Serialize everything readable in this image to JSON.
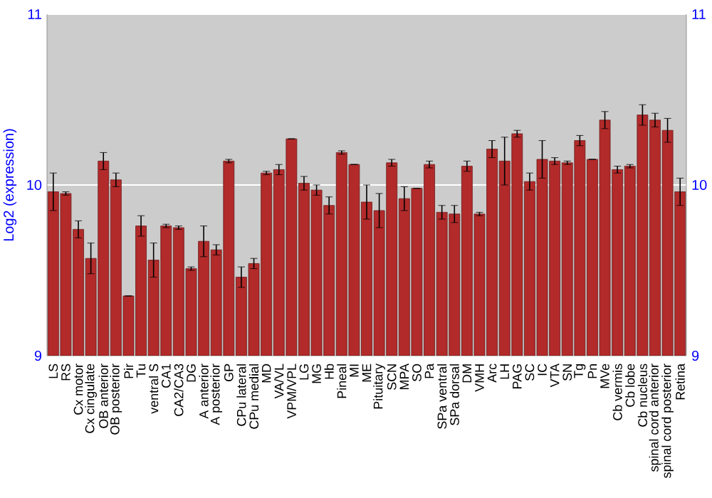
{
  "chart_data": {
    "type": "bar",
    "ylabel": "Log2 (expression)",
    "categories": [
      "LS",
      "RS",
      "Cx motor",
      "Cx cingulate",
      "OB anterior",
      "OB posterior",
      "Pir",
      "Tu",
      "ventral S",
      "CA1",
      "CA2/CA3",
      "DG",
      "A anterior",
      "A posterior",
      "GP",
      "CPu lateral",
      "CPu medial",
      "MD",
      "VA/VL",
      "VPM/VPL",
      "LG",
      "MG",
      "Hb",
      "Pineal",
      "MI",
      "ME",
      "Pituitary",
      "SCN",
      "MPA",
      "SO",
      "Pa",
      "SPa ventral",
      "SPa dorsal",
      "DM",
      "VMH",
      "Arc",
      "LH",
      "PAG",
      "SC",
      "IC",
      "VTA",
      "SN",
      "Tg",
      "Pn",
      "MVe",
      "Cb vermis",
      "Cb lobe",
      "Cb nucleus",
      "spinal cord anterior",
      "spinal cord posterior",
      "Retina"
    ],
    "values": [
      9.96,
      9.95,
      9.74,
      9.57,
      10.14,
      10.03,
      9.35,
      9.76,
      9.56,
      9.76,
      9.75,
      9.51,
      9.67,
      9.62,
      10.14,
      9.46,
      9.54,
      10.07,
      10.09,
      10.27,
      10.01,
      9.97,
      9.88,
      10.19,
      10.12,
      9.9,
      9.85,
      10.13,
      9.92,
      9.98,
      10.12,
      9.84,
      9.83,
      10.11,
      9.83,
      10.21,
      10.14,
      10.3,
      10.02,
      10.15,
      10.14,
      10.13,
      10.26,
      10.15,
      10.38,
      10.09,
      10.11,
      10.41,
      10.38,
      10.32,
      9.96
    ],
    "errors": [
      0.11,
      0.01,
      0.05,
      0.09,
      0.05,
      0.04,
      null,
      0.06,
      0.1,
      0.01,
      0.01,
      0.01,
      0.09,
      0.03,
      0.01,
      0.06,
      0.03,
      0.01,
      0.03,
      null,
      0.04,
      0.03,
      0.05,
      0.01,
      null,
      0.1,
      0.1,
      0.02,
      0.07,
      null,
      0.02,
      0.04,
      0.05,
      0.03,
      0.01,
      0.05,
      0.14,
      0.02,
      0.05,
      0.11,
      0.02,
      0.01,
      0.03,
      null,
      0.05,
      0.02,
      0.01,
      0.06,
      0.04,
      0.07,
      0.08
    ],
    "color": "#b22a2a",
    "ylim": [
      9,
      11
    ],
    "yticks": [
      9,
      10,
      11
    ],
    "y2lim": [
      9,
      11
    ],
    "y2ticks": [
      9,
      10,
      11
    ],
    "grid": "y"
  }
}
